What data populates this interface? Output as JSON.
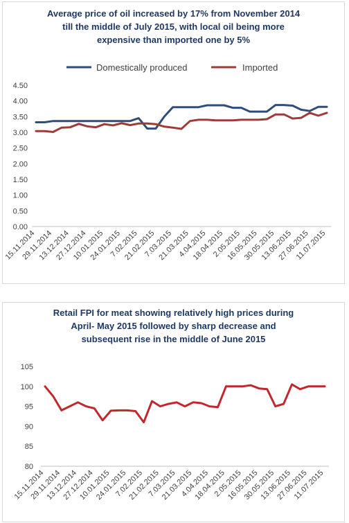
{
  "chart_data": [
    {
      "type": "line",
      "title_lines": [
        "Average price of oil increased by 17% from November 2014",
        "till  the middle of July 2015, with local oil being more",
        "expensive than imported one by 5%"
      ],
      "xlabel": "",
      "ylabel": "",
      "ylim": [
        0,
        4.5
      ],
      "yticks": [
        "0.00",
        "0.50",
        "1.00",
        "1.50",
        "2.00",
        "2.50",
        "3.00",
        "3.50",
        "4.00",
        "4.50"
      ],
      "grid": false,
      "legend_position": "top",
      "categories": [
        "15.11.2014",
        "29.11.2014",
        "13.12.2014",
        "27.12.2014",
        "10.01.2015",
        "24.01.2015",
        "7.02.2015",
        "21.02.2015",
        "7.03.2015",
        "21.03.2015",
        "4.04.2015",
        "18.04.2015",
        "2.05.2015",
        "16.05.2015",
        "30.05.2015",
        "13.06.2015",
        "27.06.2015",
        "11.07.2015"
      ],
      "x": [
        0,
        0.5,
        1,
        1.5,
        2,
        2.5,
        3,
        3.5,
        4,
        4.5,
        5,
        5.5,
        6,
        6.5,
        7,
        7.5,
        8,
        8.5,
        9,
        9.5,
        10,
        10.5,
        11,
        11.5,
        12,
        12.5,
        13,
        13.5,
        14,
        14.5,
        15,
        15.5,
        16,
        16.5,
        17
      ],
      "series": [
        {
          "name": "Domestically produced",
          "color": "#2e4d7b",
          "values": [
            3.32,
            3.32,
            3.36,
            3.36,
            3.36,
            3.36,
            3.36,
            3.36,
            3.36,
            3.36,
            3.36,
            3.36,
            3.45,
            3.12,
            3.12,
            3.5,
            3.8,
            3.8,
            3.8,
            3.8,
            3.86,
            3.86,
            3.86,
            3.78,
            3.78,
            3.66,
            3.66,
            3.66,
            3.87,
            3.87,
            3.85,
            3.72,
            3.68,
            3.81,
            3.81
          ]
        },
        {
          "name": "Imported",
          "color": "#9e3b38",
          "values": [
            3.04,
            3.04,
            3.01,
            3.15,
            3.16,
            3.27,
            3.19,
            3.16,
            3.26,
            3.22,
            3.29,
            3.23,
            3.28,
            3.28,
            3.26,
            3.18,
            3.15,
            3.11,
            3.36,
            3.4,
            3.4,
            3.38,
            3.38,
            3.38,
            3.4,
            3.4,
            3.4,
            3.42,
            3.57,
            3.57,
            3.44,
            3.46,
            3.62,
            3.53,
            3.62
          ]
        }
      ]
    },
    {
      "type": "line",
      "title_lines": [
        "Retail FPI for meat showing relatively high prices during",
        "April- May 2015 followed by sharp decrease and",
        "subsequent rise in the middle of June 2015"
      ],
      "xlabel": "",
      "ylabel": "",
      "ylim": [
        80,
        105
      ],
      "yticks": [
        "80",
        "85",
        "90",
        "95",
        "100",
        "105"
      ],
      "grid": false,
      "categories": [
        "15.11.2014",
        "29.11.2014",
        "13.12.2014",
        "27.12.2014",
        "10.01.2015",
        "24.01.2015",
        "7.02.2015",
        "21.02.2015",
        "7.03.2015",
        "21.03.2015",
        "4.04.2015",
        "18.04.2015",
        "2.05.2015",
        "16.05.2015",
        "30.05.2015",
        "13.06.2015",
        "27.06.2015",
        "11.07.2015"
      ],
      "x": [
        0,
        0.5,
        1,
        1.5,
        2,
        2.5,
        3,
        3.5,
        4,
        4.5,
        5,
        5.5,
        6,
        6.5,
        7,
        7.5,
        8,
        8.5,
        9,
        9.5,
        10,
        10.5,
        11,
        11.5,
        12,
        12.5,
        13,
        13.5,
        14,
        14.5,
        15,
        15.5,
        16,
        16.5,
        17
      ],
      "series": [
        {
          "name": "",
          "color": "#c0282d",
          "values": [
            100,
            97.5,
            94,
            95,
            96,
            95,
            94.5,
            91.5,
            93.9,
            94,
            94,
            93.8,
            91,
            96.3,
            95,
            95.6,
            96,
            95,
            96,
            95.8,
            95,
            94.8,
            100,
            100,
            100,
            100.3,
            99.5,
            99.3,
            95,
            95.6,
            100.5,
            99.3,
            100,
            100,
            100
          ]
        }
      ]
    }
  ]
}
